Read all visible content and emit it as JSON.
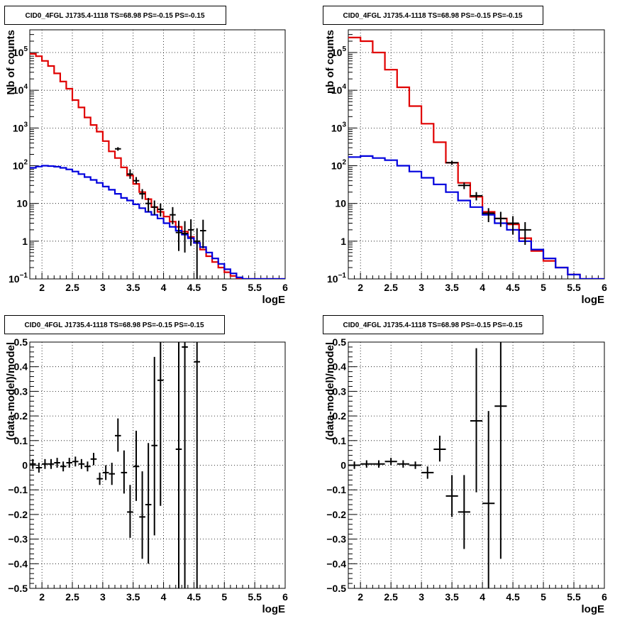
{
  "chart_data": [
    {
      "type": "step-histogram",
      "panel": "top-left",
      "title": "CID0_4FGL J1735.4-1118 TS=68.98 PS=-0.15 PS=-0.15",
      "xlabel": "logE",
      "ylabel": "Nb of counts",
      "xlim": [
        1.8,
        6.0
      ],
      "ylim": [
        0.1,
        400000
      ],
      "yscale": "log",
      "grid": true,
      "x_ticks": [
        "2",
        "2.5",
        "3",
        "3.5",
        "4",
        "4.5",
        "5",
        "5.5",
        "6"
      ],
      "y_ticks": [
        "10^-1",
        "1",
        "10",
        "10^2",
        "10^3",
        "10^4",
        "10^5"
      ],
      "series": [
        {
          "color": "#e00000",
          "bin_edges": [
            1.8,
            1.9,
            2.0,
            2.1,
            2.2,
            2.3,
            2.4,
            2.5,
            2.6,
            2.7,
            2.8,
            2.9,
            3.0,
            3.1,
            3.2,
            3.3,
            3.4,
            3.5,
            3.6,
            3.7,
            3.8,
            3.9,
            4.0,
            4.1,
            4.2,
            4.3,
            4.4,
            4.5,
            4.6,
            4.7,
            4.8,
            4.9,
            5.0,
            5.1,
            5.2,
            5.3,
            5.4,
            5.5,
            5.6,
            5.7,
            5.8,
            5.9,
            6.0
          ],
          "values": [
            92000,
            80000,
            60000,
            44000,
            28000,
            17000,
            11000,
            5500,
            3500,
            1900,
            1200,
            800,
            450,
            240,
            160,
            90,
            55,
            33,
            20,
            13,
            8,
            6,
            4.5,
            3.3,
            2.4,
            1.8,
            1.3,
            0.9,
            0.6,
            0.4,
            0.28,
            0.2,
            0.15,
            0.12,
            0.1,
            0.1,
            0.1,
            0.1,
            0.1,
            0.1,
            0.1,
            0.1
          ]
        },
        {
          "color": "#0000dd",
          "bin_edges": [
            1.8,
            1.9,
            2.0,
            2.1,
            2.2,
            2.3,
            2.4,
            2.5,
            2.6,
            2.7,
            2.8,
            2.9,
            3.0,
            3.1,
            3.2,
            3.3,
            3.4,
            3.5,
            3.6,
            3.7,
            3.8,
            3.9,
            4.0,
            4.1,
            4.2,
            4.3,
            4.4,
            4.5,
            4.6,
            4.7,
            4.8,
            4.9,
            5.0,
            5.1,
            5.2,
            5.3,
            5.4,
            5.5,
            5.6,
            5.7,
            5.8,
            5.9,
            6.0
          ],
          "values": [
            88,
            95,
            100,
            98,
            94,
            88,
            80,
            70,
            60,
            50,
            42,
            35,
            28,
            23,
            18,
            14,
            12,
            9.5,
            7.5,
            6,
            5,
            4,
            3,
            2.4,
            1.9,
            1.5,
            1.2,
            0.9,
            0.7,
            0.5,
            0.35,
            0.25,
            0.18,
            0.14,
            0.11,
            0.1,
            0.1,
            0.1,
            0.1,
            0.1,
            0.1,
            0.1
          ]
        }
      ],
      "points": {
        "x": [
          3.25,
          3.45,
          3.55,
          3.65,
          3.75,
          3.85,
          3.95,
          4.15,
          4.25,
          4.35,
          4.45,
          4.55,
          4.65
        ],
        "y": [
          280,
          60,
          40,
          18,
          10,
          8,
          7,
          5,
          1.7,
          1.6,
          2,
          1,
          1.9
        ],
        "ylo": [
          250,
          45,
          33,
          13,
          6,
          5,
          4.5,
          2.8,
          0.55,
          0.5,
          0.75,
          0.1,
          0.65
        ],
        "yhi": [
          310,
          80,
          50,
          24,
          14,
          12,
          10,
          8,
          3.5,
          3.4,
          3.8,
          2.2,
          3.7
        ],
        "xerr": 0.05
      }
    },
    {
      "type": "step-histogram",
      "panel": "top-right",
      "title": "CID0_4FGL J1735.4-1118 TS=68.98 PS=-0.15 PS=-0.15",
      "xlabel": "logE",
      "ylabel": "nb of counts",
      "xlim": [
        1.8,
        6.0
      ],
      "ylim": [
        0.1,
        400000
      ],
      "yscale": "log",
      "grid": true,
      "x_ticks": [
        "2",
        "2.5",
        "3",
        "3.5",
        "4",
        "4.5",
        "5",
        "5.5",
        "6"
      ],
      "y_ticks": [
        "10^-1",
        "1",
        "10",
        "10^2",
        "10^3",
        "10^4",
        "10^5"
      ],
      "series": [
        {
          "color": "#e00000",
          "bin_edges": [
            1.8,
            2.0,
            2.2,
            2.4,
            2.6,
            2.8,
            3.0,
            3.2,
            3.4,
            3.6,
            3.8,
            4.0,
            4.2,
            4.4,
            4.6,
            4.8,
            5.0,
            5.2,
            5.4,
            5.6,
            5.8,
            6.0
          ],
          "values": [
            250000,
            200000,
            100000,
            35000,
            12000,
            3800,
            1300,
            420,
            120,
            35,
            15,
            6,
            4,
            2.8,
            1.2,
            0.55,
            0.3,
            0.2,
            0.13,
            0.1,
            0.1
          ]
        },
        {
          "color": "#0000dd",
          "bin_edges": [
            1.8,
            2.0,
            2.2,
            2.4,
            2.6,
            2.8,
            3.0,
            3.2,
            3.4,
            3.6,
            3.8,
            4.0,
            4.2,
            4.4,
            4.6,
            4.8,
            5.0,
            5.2,
            5.4,
            5.6,
            5.8,
            6.0
          ],
          "values": [
            170,
            180,
            160,
            140,
            100,
            70,
            48,
            32,
            20,
            12,
            8,
            5,
            3,
            2,
            1,
            0.6,
            0.35,
            0.2,
            0.13,
            0.1,
            0.1
          ]
        }
      ],
      "points": {
        "x": [
          3.5,
          3.7,
          3.9,
          4.1,
          4.3,
          4.5,
          4.7
        ],
        "y": [
          120,
          30,
          16,
          5.5,
          4,
          3,
          2
        ],
        "ylo": [
          105,
          24,
          12,
          3.2,
          2.4,
          1.5,
          0.8
        ],
        "yhi": [
          135,
          36,
          20,
          7.5,
          6,
          4.6,
          3.2
        ],
        "xerr": 0.1
      }
    },
    {
      "type": "scatter-errorbar",
      "panel": "bottom-left",
      "title": "CID0_4FGL J1735.4-1118 TS=68.98 PS=-0.15 PS=-0.15",
      "xlabel": "logE",
      "ylabel": "(data-model)/model",
      "xlim": [
        1.8,
        6.0
      ],
      "ylim": [
        -0.5,
        0.5
      ],
      "grid": true,
      "x_ticks": [
        "2",
        "2.5",
        "3",
        "3.5",
        "4",
        "4.5",
        "5",
        "5.5",
        "6"
      ],
      "y_ticks": [
        "-0.5",
        "-0.4",
        "-0.3",
        "-0.2",
        "-0.1",
        "0",
        "0.1",
        "0.2",
        "0.3",
        "0.4",
        "0.5"
      ],
      "points": {
        "x": [
          1.85,
          1.95,
          2.05,
          2.15,
          2.25,
          2.35,
          2.45,
          2.55,
          2.65,
          2.75,
          2.85,
          2.95,
          3.05,
          3.15,
          3.25,
          3.35,
          3.45,
          3.55,
          3.65,
          3.75,
          3.85,
          3.95,
          4.25,
          4.35,
          4.55
        ],
        "y": [
          0.005,
          -0.01,
          0.005,
          0.005,
          0.01,
          -0.005,
          0.01,
          0.015,
          0.005,
          -0.005,
          0.025,
          -0.055,
          -0.03,
          -0.035,
          0.12,
          -0.03,
          -0.19,
          -0.005,
          -0.21,
          -0.16,
          0.08,
          0.345,
          0.065,
          0.48,
          0.42
        ],
        "ylo": [
          -0.015,
          -0.03,
          -0.015,
          -0.015,
          -0.01,
          -0.025,
          -0.01,
          -0.005,
          -0.015,
          -0.025,
          0.0,
          -0.08,
          -0.06,
          -0.08,
          0.055,
          -0.115,
          -0.295,
          -0.145,
          -0.38,
          -0.4,
          -0.285,
          -0.165,
          -0.5,
          -0.5,
          -0.5
        ],
        "yhi": [
          0.025,
          0.01,
          0.025,
          0.025,
          0.03,
          0.015,
          0.03,
          0.035,
          0.025,
          0.015,
          0.05,
          -0.03,
          0.0,
          0.01,
          0.19,
          0.06,
          -0.08,
          0.14,
          -0.025,
          0.09,
          0.44,
          0.5,
          0.5,
          0.5,
          0.5
        ],
        "xerr": 0.05
      }
    },
    {
      "type": "scatter-errorbar",
      "panel": "bottom-right",
      "title": "CID0_4FGL J1735.4-1118 TS=68.98 PS=-0.15 PS=-0.15",
      "xlabel": "logE",
      "ylabel": "(data-model)/model",
      "xlim": [
        1.8,
        6.0
      ],
      "ylim": [
        -0.5,
        0.5
      ],
      "grid": true,
      "x_ticks": [
        "2",
        "2.5",
        "3",
        "3.5",
        "4",
        "4.5",
        "5",
        "5.5",
        "6"
      ],
      "y_ticks": [
        "-0.5",
        "-0.4",
        "-0.3",
        "-0.2",
        "-0.1",
        "0",
        "0.1",
        "0.2",
        "0.3",
        "0.4",
        "0.5"
      ],
      "points": {
        "x": [
          1.9,
          2.1,
          2.3,
          2.5,
          2.7,
          2.9,
          3.1,
          3.3,
          3.5,
          3.7,
          3.9,
          4.1,
          4.3
        ],
        "y": [
          0.0,
          0.005,
          0.005,
          0.015,
          0.005,
          0.0,
          -0.03,
          0.065,
          -0.125,
          -0.19,
          0.18,
          -0.155,
          0.24
        ],
        "ylo": [
          -0.015,
          -0.01,
          -0.01,
          0.0,
          -0.01,
          -0.015,
          -0.055,
          0.015,
          -0.21,
          -0.34,
          -0.11,
          -0.5,
          -0.38
        ],
        "yhi": [
          0.015,
          0.02,
          0.02,
          0.03,
          0.02,
          0.015,
          -0.005,
          0.12,
          -0.04,
          -0.04,
          0.475,
          0.22,
          0.5
        ],
        "xerr": 0.1
      }
    }
  ]
}
